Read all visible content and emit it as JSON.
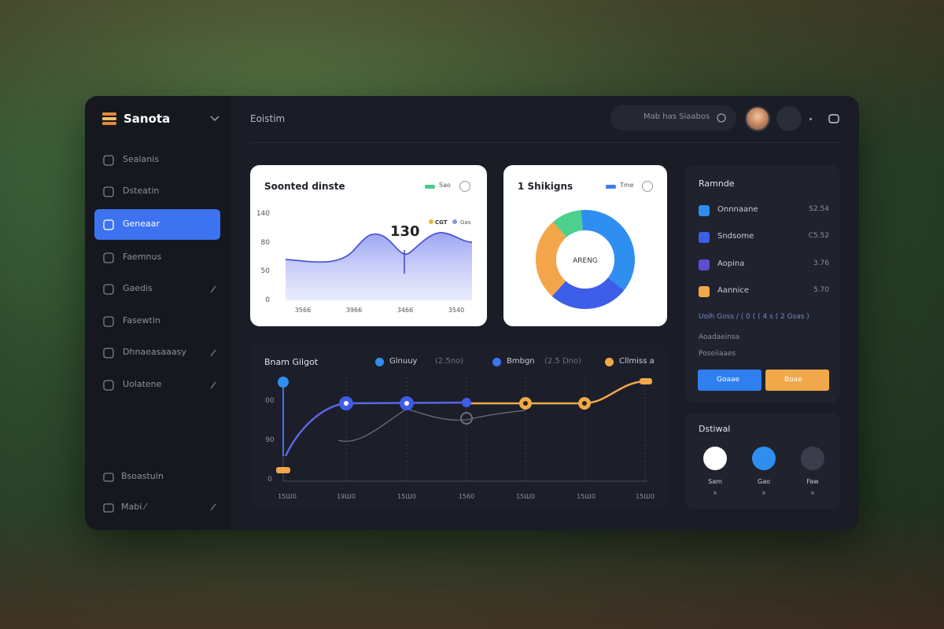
{
  "sidebar": {
    "brand": "Sanota",
    "nav": [
      "Sealanis",
      "Dsteatin",
      "Geneaar",
      "Faemnus",
      "Gaedis",
      "Fasewtin",
      "Dhnaeasaaasy",
      "Uolatene"
    ],
    "footer": [
      "Bsoastuin",
      "Mabi ⁄"
    ]
  },
  "header": {
    "title": "Eoistim",
    "search": "Mab has Siaabos"
  },
  "area_card": {
    "title": "Soonted dinste",
    "legend": "Sao",
    "annotation": "130",
    "annotation_legend": [
      "CGT",
      "Gas"
    ],
    "y_labels": [
      "140",
      "80",
      "50",
      "0"
    ],
    "x_labels": [
      "3566",
      "3966",
      "3466",
      "3540"
    ]
  },
  "donut_card": {
    "title": "1 Shikigns",
    "legend": "Tme",
    "center": "ARENG"
  },
  "trend_card": {
    "title": "Bnam Gilgot",
    "legend": [
      "Glnuuy",
      "Bmbgn",
      "Cllmiss a"
    ],
    "legend_notes": [
      "(2.5no)",
      "(2.5 Dno)"
    ],
    "y_labels": [
      "00",
      "90",
      "0"
    ],
    "x_labels": [
      "15Ш0",
      "19Ш0",
      "15Ш0",
      "1560",
      "15Ш0",
      "15Ш0",
      "15Ш0"
    ]
  },
  "side_panel": {
    "title": "Ramnde",
    "items": [
      {
        "label": "Onnnaane",
        "value": "S2.54"
      },
      {
        "label": "Sndsome",
        "value": "C5.52"
      },
      {
        "label": "Aopina",
        "value": "3.76"
      },
      {
        "label": "Aannice",
        "value": "5.70"
      }
    ],
    "note": "Uoih Goss / ( 0 ( ( 4 s ( 2 Gsas )",
    "lines": [
      "Aoadaeinsa",
      "Poseiiaaes"
    ],
    "buttons": [
      "Goaae",
      "Boae"
    ]
  },
  "devices": {
    "title": "Dstiwal",
    "items": [
      "Sam",
      "Gao",
      "Faw"
    ]
  }
}
